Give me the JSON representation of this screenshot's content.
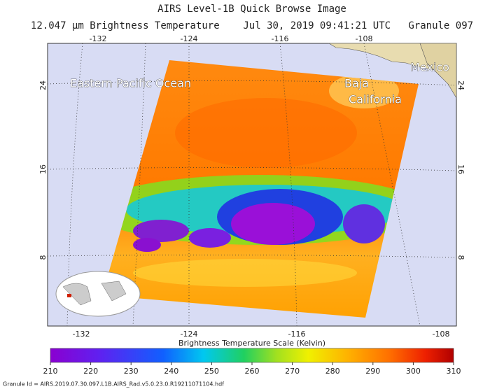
{
  "header": {
    "title": "AIRS Level-1B Quick Browse Image",
    "subtitle": "12.047 μm Brightness Temperature    Jul 30, 2019 09:41:21 UTC   Granule 097"
  },
  "map": {
    "lon_ticks": [
      -132,
      -124,
      -116,
      -108
    ],
    "lat_ticks": [
      24,
      16,
      8
    ],
    "places": [
      "Eastern Pacific Ocean",
      "Baja",
      "California",
      "Mexico"
    ]
  },
  "colorbar": {
    "title": "Brightness Temperature Scale (Kelvin)",
    "ticks": [
      210,
      220,
      230,
      240,
      250,
      260,
      270,
      280,
      290,
      300,
      310
    ]
  },
  "footer": "Granule Id = AIRS.2019.07.30.097.L1B.AIRS_Rad.v5.0.23.0.R19211071104.hdf"
}
